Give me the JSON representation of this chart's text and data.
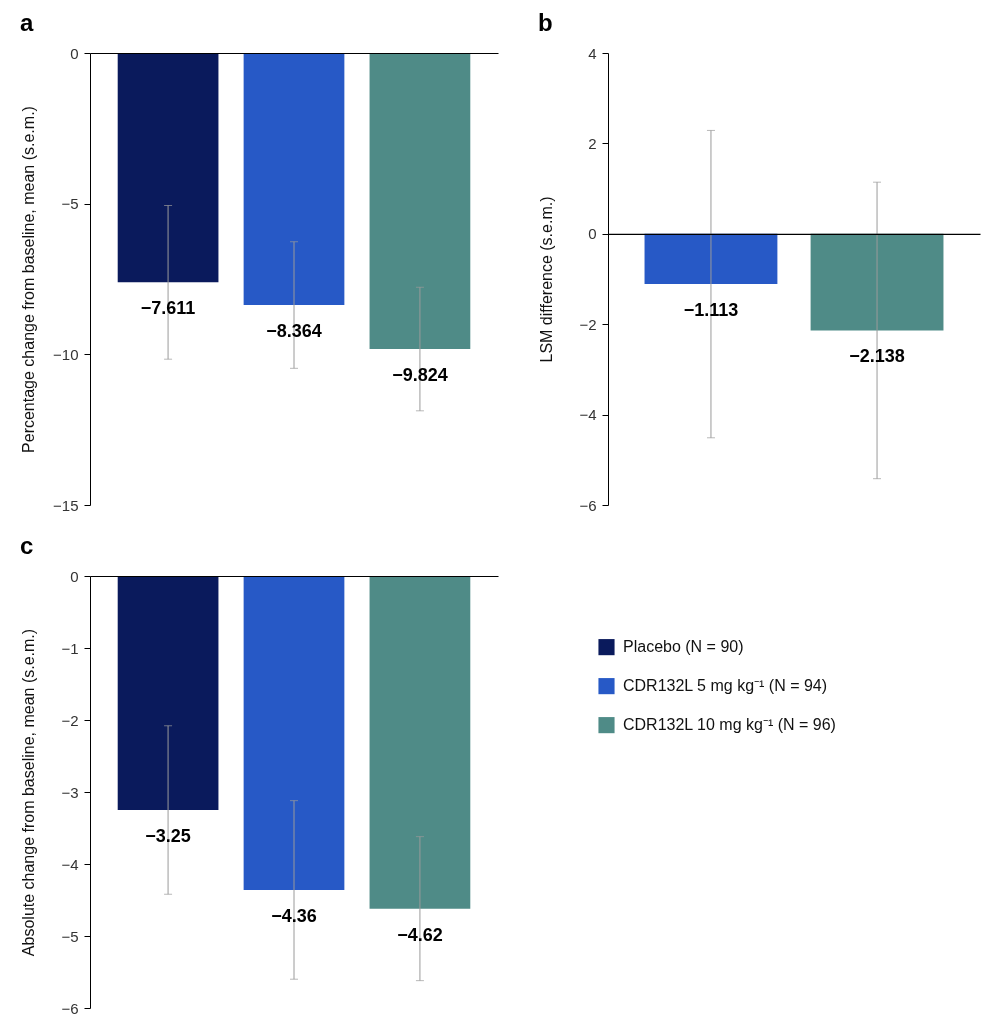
{
  "chart_data": [
    {
      "type": "bar",
      "title": "a",
      "ylabel": "Percentage change from baseline, mean (s.e.m.)",
      "categories": [
        null,
        null,
        null
      ],
      "series": [
        {
          "color": "#0a1a5c",
          "values": [
            -7.611,
            null,
            null
          ],
          "errors": [
            2.55,
            null,
            null
          ],
          "value_labels": [
            "−7.611",
            null,
            null
          ]
        },
        {
          "color": "#2759c6",
          "values": [
            null,
            -8.364,
            null
          ],
          "errors": [
            null,
            2.1,
            null
          ],
          "value_labels": [
            null,
            "−8.364",
            null
          ]
        },
        {
          "color": "#4f8b87",
          "values": [
            null,
            null,
            -9.824
          ],
          "errors": [
            null,
            null,
            2.05
          ],
          "value_labels": [
            null,
            null,
            "−9.824"
          ]
        }
      ],
      "ylim": [
        -15,
        0
      ],
      "yticks": [
        -15,
        -10,
        -5,
        0
      ]
    },
    {
      "type": "bar",
      "title": "b",
      "ylabel": "LSM difference (s.e.m.)",
      "categories": [
        null,
        null
      ],
      "series": [
        {
          "color": "#2759c6",
          "values": [
            -1.113,
            null
          ],
          "errors": [
            3.4,
            null
          ],
          "value_labels": [
            "−1.113",
            null
          ]
        },
        {
          "color": "#4f8b87",
          "values": [
            null,
            -2.138
          ],
          "errors": [
            null,
            3.28
          ],
          "value_labels": [
            null,
            "−2.138"
          ]
        }
      ],
      "ylim": [
        -6,
        4
      ],
      "yticks": [
        -6,
        -4,
        -2,
        0,
        2,
        4
      ]
    },
    {
      "type": "bar",
      "title": "c",
      "ylabel": "Absolute change from baseline, mean (s.e.m.)",
      "categories": [
        null,
        null,
        null
      ],
      "series": [
        {
          "name": "Placebo (N = 90)",
          "color": "#0a1a5c",
          "values": [
            -3.25,
            null,
            null
          ],
          "errors": [
            1.17,
            null,
            null
          ],
          "value_labels": [
            "−3.25",
            null,
            null
          ]
        },
        {
          "name": "CDR132L 5 mg kg⁻¹ (N = 94)",
          "color": "#2759c6",
          "values": [
            null,
            -4.36,
            null
          ],
          "errors": [
            null,
            1.24,
            null
          ],
          "value_labels": [
            null,
            "−4.36",
            null
          ]
        },
        {
          "name": "CDR132L 10 mg kg⁻¹ (N = 96)",
          "color": "#4f8b87",
          "values": [
            null,
            null,
            -4.62
          ],
          "errors": [
            null,
            null,
            1.0
          ],
          "value_labels": [
            null,
            null,
            "−4.62"
          ]
        }
      ],
      "ylim": [
        -6,
        0
      ],
      "yticks": [
        -6,
        -5,
        -4,
        -3,
        -2,
        -1,
        0
      ],
      "legend": "right"
    }
  ]
}
